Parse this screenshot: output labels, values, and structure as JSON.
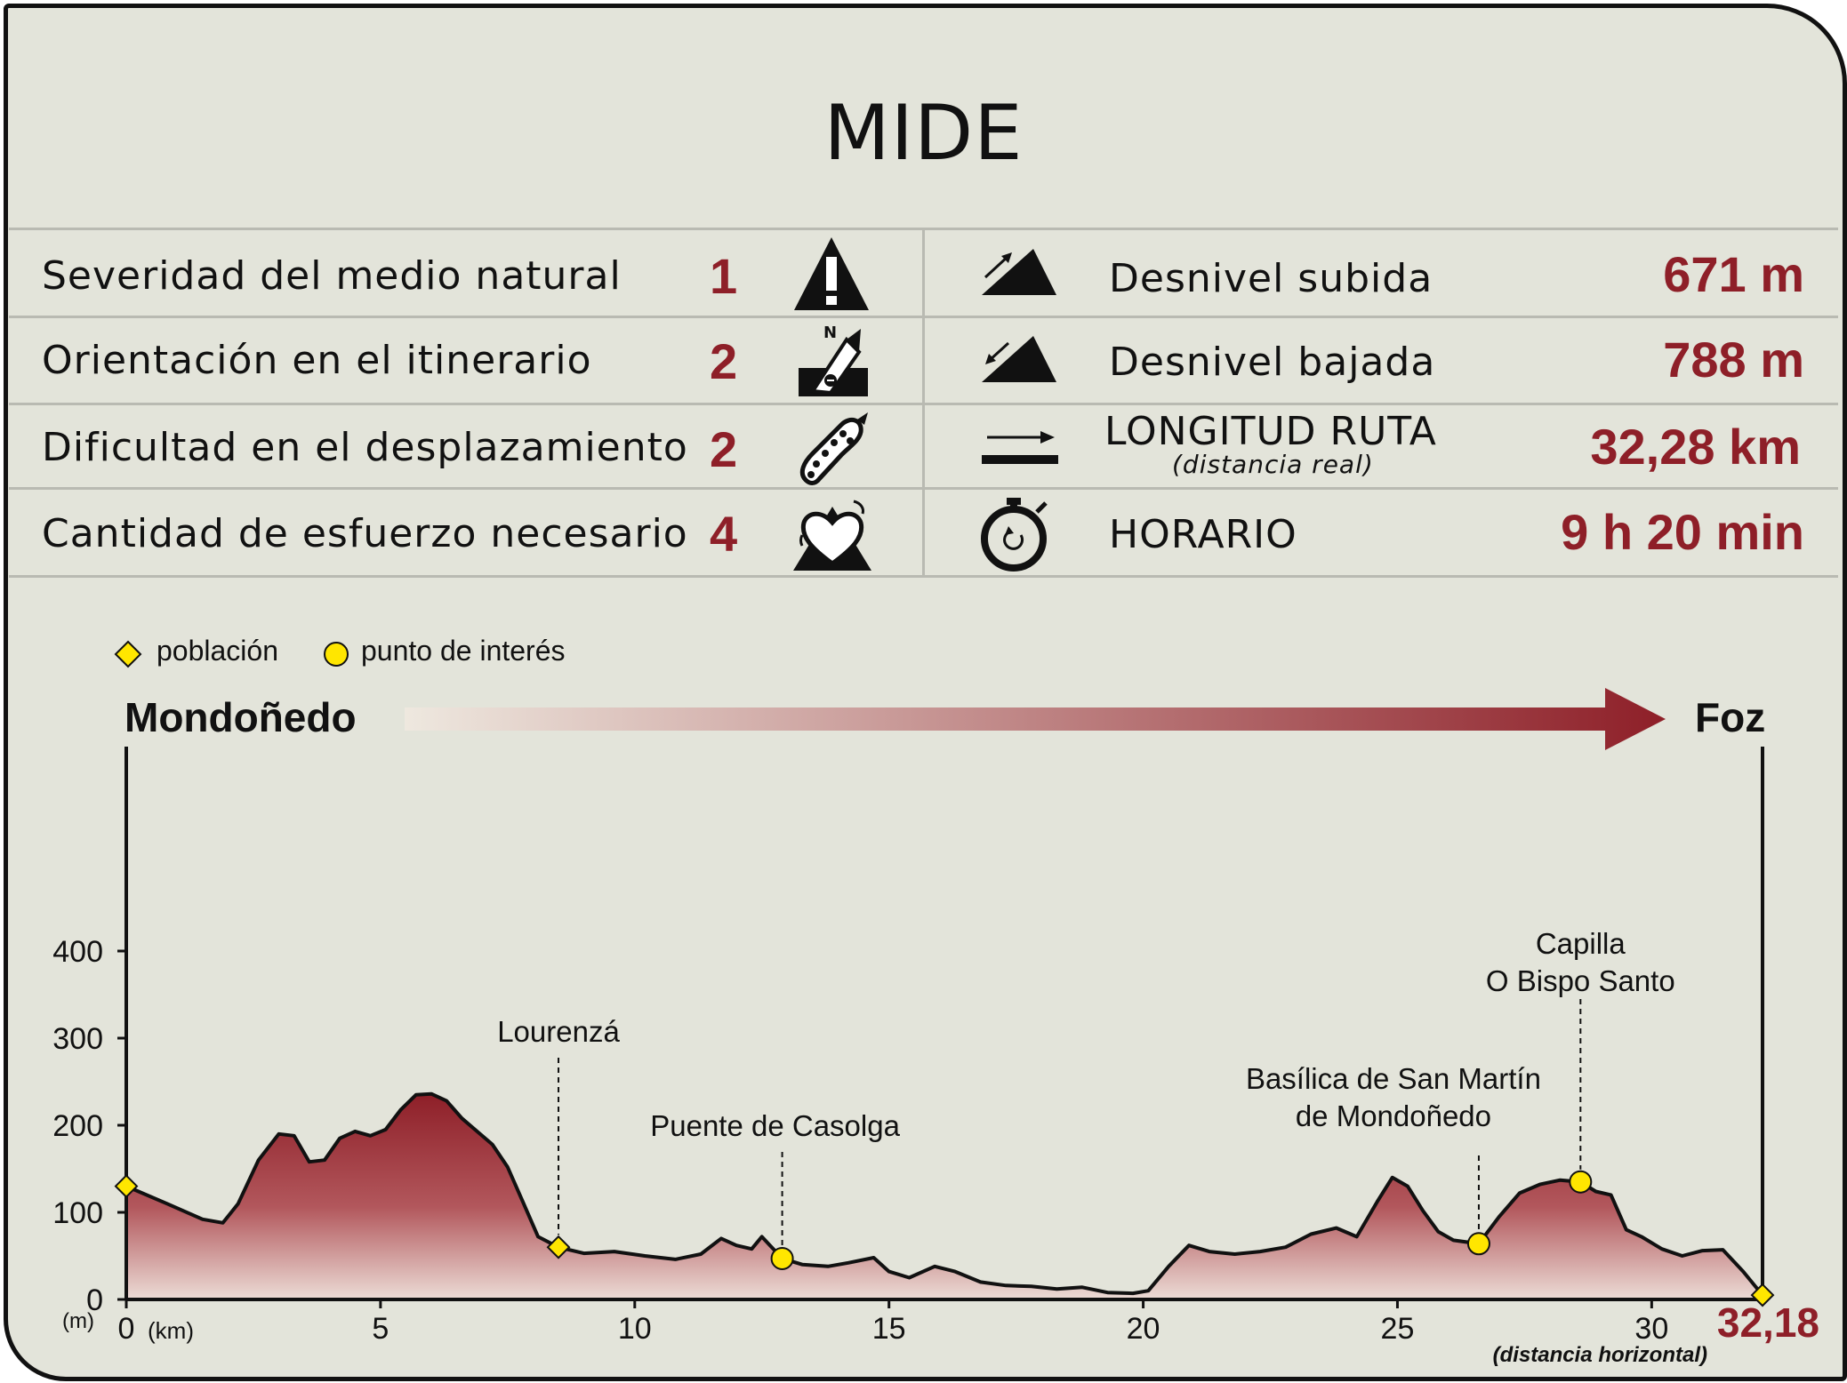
{
  "title": "MIDE",
  "mide": [
    {
      "label": "Severidad del medio natural",
      "value": "1",
      "icon": "warning-triangle-icon"
    },
    {
      "label": "Orientación en el itinerario",
      "value": "2",
      "icon": "compass-orientation-icon"
    },
    {
      "label": "Dificultad en el desplazamiento",
      "value": "2",
      "icon": "footprint-icon"
    },
    {
      "label": "Cantidad de esfuerzo necesario",
      "value": "4",
      "icon": "heart-effort-icon"
    }
  ],
  "stats": [
    {
      "label": "Desnivel subida",
      "sublabel": "",
      "value": "671 m",
      "icon": "ascent-slope-icon"
    },
    {
      "label": "Desnivel bajada",
      "sublabel": "",
      "value": "788 m",
      "icon": "descent-slope-icon"
    },
    {
      "label": "LONGITUD RUTA",
      "sublabel": "(distancia real)",
      "value": "32,28 km",
      "icon": "distance-arrow-icon"
    },
    {
      "label": "HORARIO",
      "sublabel": "",
      "value": "9 h 20 min",
      "icon": "stopwatch-icon"
    }
  ],
  "legend": {
    "town": "población",
    "poi": "punto de interés"
  },
  "route": {
    "start": "Mondoñedo",
    "end": "Foz"
  },
  "colors": {
    "accent": "#8e1f28",
    "profile_dark": "#8e1f28",
    "profile_light": "#e8d8d2",
    "marker": "#ffe600",
    "background": "#e3e4da"
  },
  "chart_data": {
    "type": "area",
    "xlabel": "(km)",
    "ylabel": "(m)",
    "xlim": [
      0,
      32.18
    ],
    "ylim": [
      0,
      450
    ],
    "xticks": [
      0,
      5,
      10,
      15,
      20,
      25,
      30
    ],
    "xtick_labels": [
      "0",
      "5",
      "10",
      "15",
      "20",
      "25",
      "30"
    ],
    "yticks": [
      0,
      100,
      200,
      300,
      400
    ],
    "end_label": "32,18",
    "end_note": "(distancia horizontal)",
    "x": [
      0,
      0.8,
      1.5,
      1.9,
      2.2,
      2.6,
      3.0,
      3.3,
      3.6,
      3.9,
      4.2,
      4.5,
      4.8,
      5.1,
      5.4,
      5.7,
      6.0,
      6.3,
      6.6,
      6.9,
      7.2,
      7.5,
      7.8,
      8.1,
      8.5,
      9.0,
      9.6,
      10.2,
      10.8,
      11.3,
      11.7,
      12.0,
      12.3,
      12.5,
      12.9,
      13.3,
      13.8,
      14.2,
      14.7,
      15.0,
      15.4,
      15.9,
      16.3,
      16.8,
      17.3,
      17.8,
      18.3,
      18.8,
      19.3,
      19.8,
      20.1,
      20.5,
      20.9,
      21.3,
      21.8,
      22.3,
      22.8,
      23.3,
      23.8,
      24.2,
      24.6,
      24.9,
      25.2,
      25.5,
      25.8,
      26.1,
      26.6,
      27.0,
      27.4,
      27.8,
      28.2,
      28.6,
      28.9,
      29.2,
      29.5,
      29.8,
      30.2,
      30.6,
      31.0,
      31.4,
      31.8,
      32.18
    ],
    "elevation": [
      130,
      110,
      92,
      88,
      110,
      160,
      190,
      188,
      158,
      160,
      185,
      193,
      188,
      195,
      218,
      235,
      236,
      228,
      208,
      193,
      178,
      152,
      112,
      72,
      60,
      53,
      55,
      50,
      46,
      52,
      70,
      62,
      58,
      72,
      47,
      40,
      38,
      42,
      48,
      32,
      25,
      38,
      32,
      20,
      16,
      15,
      12,
      14,
      8,
      7,
      10,
      38,
      62,
      55,
      52,
      55,
      60,
      75,
      82,
      72,
      112,
      140,
      130,
      102,
      78,
      68,
      64,
      95,
      122,
      132,
      137,
      135,
      124,
      120,
      80,
      72,
      58,
      50,
      56,
      57,
      32,
      5
    ],
    "towns": [
      {
        "x": 0,
        "y": 130,
        "label": ""
      },
      {
        "x": 8.5,
        "y": 60,
        "label": "Lourenzá"
      },
      {
        "x": 32.18,
        "y": 5,
        "label": ""
      }
    ],
    "points_of_interest": [
      {
        "x": 12.9,
        "y": 47,
        "label": "Puente de Casolga"
      },
      {
        "x": 26.6,
        "y": 64,
        "label": "Basílica de San Martín de Mondoñedo"
      },
      {
        "x": 28.6,
        "y": 135,
        "label": "Capilla O Bispo Santo"
      }
    ]
  }
}
